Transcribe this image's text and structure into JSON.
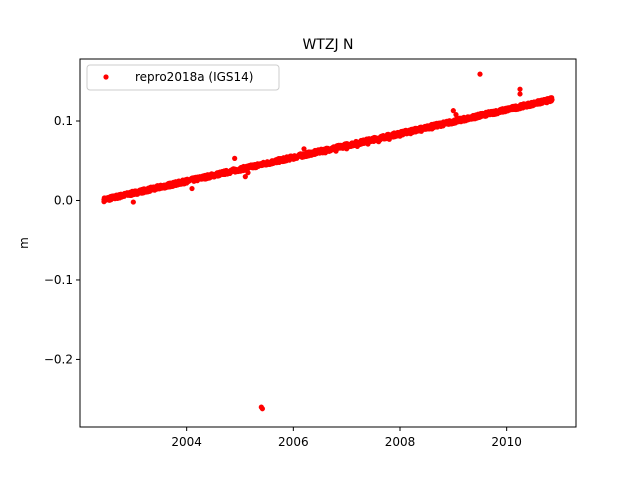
{
  "chart_data": {
    "type": "scatter",
    "title": "WTZJ N",
    "xlabel": "",
    "ylabel": "m",
    "xlim": [
      2002.0,
      2011.3
    ],
    "ylim": [
      -0.285,
      0.178
    ],
    "xticks": [
      2004,
      2006,
      2008,
      2010
    ],
    "xtick_labels": [
      "2004",
      "2006",
      "2008",
      "2010"
    ],
    "yticks": [
      -0.2,
      -0.1,
      0.0,
      0.1
    ],
    "ytick_labels": [
      "−0.2",
      "−0.1",
      "0.0",
      "0.1"
    ],
    "grid": false,
    "legend_position": "top-left",
    "series": [
      {
        "name": "repro2018a (IGS14)",
        "color": "#ff0000",
        "marker": "circle",
        "trend": {
          "x_start": 2002.45,
          "x_end": 2010.85,
          "y_start": 0.001,
          "y_end": 0.127
        },
        "points": [
          [
            2002.45,
            0.001
          ],
          [
            2002.6,
            0.003
          ],
          [
            2002.8,
            0.005
          ],
          [
            2003.0,
            0.008
          ],
          [
            2003.2,
            0.01
          ],
          [
            2003.4,
            0.013
          ],
          [
            2003.6,
            0.016
          ],
          [
            2003.8,
            0.019
          ],
          [
            2004.0,
            0.022
          ],
          [
            2004.2,
            0.025
          ],
          [
            2004.4,
            0.028
          ],
          [
            2004.6,
            0.031
          ],
          [
            2004.8,
            0.035
          ],
          [
            2005.0,
            0.04
          ],
          [
            2005.2,
            0.043
          ],
          [
            2005.4,
            0.045
          ],
          [
            2005.6,
            0.047
          ],
          [
            2005.8,
            0.049
          ],
          [
            2006.0,
            0.052
          ],
          [
            2006.2,
            0.055
          ],
          [
            2006.4,
            0.058
          ],
          [
            2006.6,
            0.06
          ],
          [
            2006.8,
            0.062
          ],
          [
            2007.0,
            0.065
          ],
          [
            2007.2,
            0.068
          ],
          [
            2007.4,
            0.071
          ],
          [
            2007.6,
            0.074
          ],
          [
            2007.8,
            0.077
          ],
          [
            2008.0,
            0.081
          ],
          [
            2008.2,
            0.084
          ],
          [
            2008.4,
            0.087
          ],
          [
            2008.6,
            0.09
          ],
          [
            2008.8,
            0.094
          ],
          [
            2009.0,
            0.097
          ],
          [
            2009.2,
            0.1
          ],
          [
            2009.4,
            0.103
          ],
          [
            2009.6,
            0.106
          ],
          [
            2009.8,
            0.109
          ],
          [
            2010.0,
            0.113
          ],
          [
            2010.2,
            0.117
          ],
          [
            2010.4,
            0.121
          ],
          [
            2010.6,
            0.124
          ],
          [
            2010.8,
            0.127
          ],
          [
            2003.0,
            -0.002
          ],
          [
            2004.1,
            0.015
          ],
          [
            2004.9,
            0.053
          ],
          [
            2005.1,
            0.03
          ],
          [
            2005.15,
            0.035
          ],
          [
            2005.4,
            -0.26
          ],
          [
            2005.42,
            -0.262
          ],
          [
            2006.2,
            0.065
          ],
          [
            2009.0,
            0.113
          ],
          [
            2009.05,
            0.108
          ],
          [
            2009.5,
            0.159
          ],
          [
            2010.25,
            0.14
          ],
          [
            2010.25,
            0.134
          ]
        ]
      }
    ]
  }
}
